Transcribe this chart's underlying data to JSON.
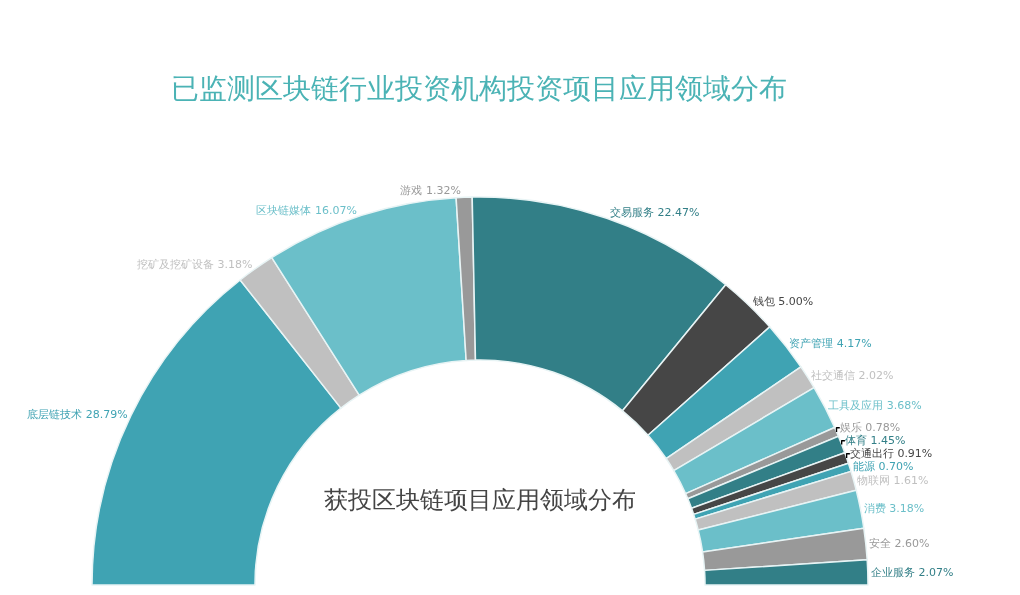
{
  "chart_data": {
    "type": "donut",
    "title": "已监测区块链行业投资机构投资项目应用领域分布",
    "annotations": [
      "获投区块链项目应用领域分布"
    ],
    "categories": [
      "底层链技术",
      "挖矿及挖矿设备",
      "区块链媒体",
      "游戏",
      "交易服务",
      "钱包",
      "资产管理",
      "社交通信",
      "工具及应用",
      "娱乐",
      "体育",
      "交通出行",
      "能源",
      "物联网",
      "消费",
      "安全",
      "企业服务"
    ],
    "values": [
      28.79,
      3.18,
      16.07,
      1.32,
      22.47,
      5.0,
      4.17,
      2.02,
      3.68,
      0.78,
      1.45,
      0.91,
      0.7,
      1.61,
      3.18,
      2.6,
      2.07
    ],
    "value_labels": [
      "28.79%",
      "3.18%",
      "16.07%",
      "1.32%",
      "22.47%",
      "5.00%",
      "4.17%",
      "2.02%",
      "3.68%",
      "0.78%",
      "1.45%",
      "0.91%",
      "0.70%",
      "1.61%",
      "3.18%",
      "2.60%",
      "2.07%"
    ],
    "colors": [
      "#3fa3b3",
      "#c0c0c0",
      "#6bbfc9",
      "#999999",
      "#327f87",
      "#464646",
      "#3fa3b3",
      "#c0c0c0",
      "#6bbfc9",
      "#999999",
      "#327f87",
      "#464646",
      "#3fa3b3",
      "#c0c0c0",
      "#6bbfc9",
      "#999999",
      "#327f87"
    ]
  }
}
